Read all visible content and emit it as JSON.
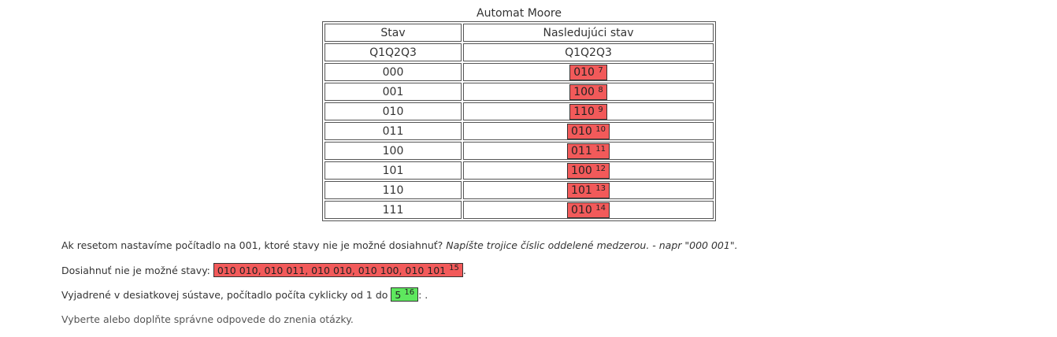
{
  "table": {
    "caption": "Automat Moore",
    "headers": [
      "Stav",
      "Nasledujúci stav"
    ],
    "subheaders": [
      "Q1Q2Q3",
      "Q1Q2Q3"
    ],
    "rows": [
      {
        "state": "000",
        "answer": "010",
        "num": "7"
      },
      {
        "state": "001",
        "answer": "100",
        "num": "8"
      },
      {
        "state": "010",
        "answer": "110",
        "num": "9"
      },
      {
        "state": "011",
        "answer": "010",
        "num": "10"
      },
      {
        "state": "100",
        "answer": "011",
        "num": "11"
      },
      {
        "state": "101",
        "answer": "100",
        "num": "12"
      },
      {
        "state": "110",
        "answer": "101",
        "num": "13"
      },
      {
        "state": "111",
        "answer": "010",
        "num": "14"
      }
    ]
  },
  "question": {
    "text": "Ak resetom nastavíme počítadlo na 001, ktoré stavy nie je možné dosiahnuť? ",
    "hint": "Napíšte trojice číslic oddelené medzerou. - napr \"000 001\"."
  },
  "unreachable": {
    "label": "Dosiahnuť nie je možné stavy: ",
    "answer": "010 010, 010 011, 010 010, 010 100, 010 101",
    "num": "15",
    "suffix": "."
  },
  "decimal": {
    "label": "Vyjadrené v desiatkovej sústave, počítadlo počíta cyklicky od 1 do ",
    "answer": "5",
    "num": "16",
    "suffix": ": ."
  },
  "footer": "Vyberte alebo doplňte správne odpovede do znenia otázky.",
  "colors": {
    "wrong": "#f25a5a",
    "correct": "#5ee85e"
  }
}
